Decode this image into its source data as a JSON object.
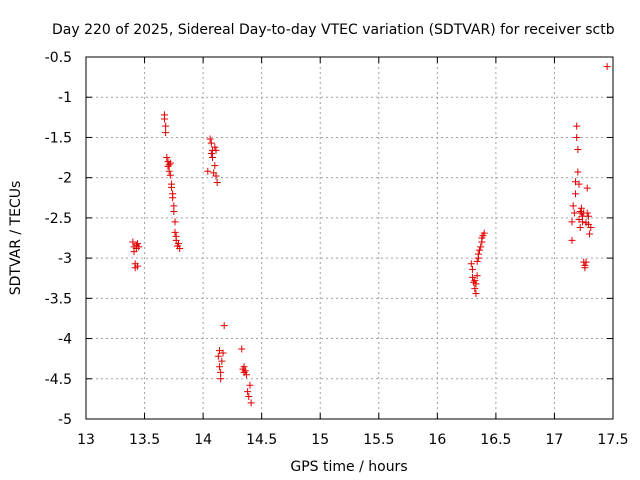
{
  "chart_data": {
    "type": "scatter",
    "title": "Day 220 of 2025, Sidereal Day-to-day VTEC variation (SDTVAR) for receiver sctb",
    "xlabel": "GPS time / hours",
    "ylabel": "SDTVAR / TECUs",
    "xlim": [
      13,
      17.5
    ],
    "ylim": [
      -5,
      -0.5
    ],
    "xticks": [
      13,
      13.5,
      14,
      14.5,
      15,
      15.5,
      16,
      16.5,
      17,
      17.5
    ],
    "xtick_labels": [
      "13",
      "13.5",
      "14",
      "14.5",
      "15",
      "15.5",
      "16",
      "16.5",
      "17",
      "17.5"
    ],
    "yticks": [
      -0.5,
      -1,
      -1.5,
      -2,
      -2.5,
      -3,
      -3.5,
      -4,
      -4.5,
      -5
    ],
    "ytick_labels": [
      "-0.5",
      "-1",
      "-1.5",
      "-2",
      "-2.5",
      "-3",
      "-3.5",
      "-4",
      "-4.5",
      "-5"
    ],
    "grid": true,
    "marker": "plus",
    "color": "#e00000",
    "series": [
      {
        "name": "SDTVAR",
        "points": [
          [
            13.4,
            -2.8
          ],
          [
            13.41,
            -2.86
          ],
          [
            13.41,
            -2.92
          ],
          [
            13.42,
            -3.07
          ],
          [
            13.42,
            -3.12
          ],
          [
            13.43,
            -2.84
          ],
          [
            13.43,
            -2.88
          ],
          [
            13.44,
            -3.1
          ],
          [
            13.44,
            -2.82
          ],
          [
            13.45,
            -2.86
          ],
          [
            13.67,
            -1.22
          ],
          [
            13.67,
            -1.27
          ],
          [
            13.68,
            -1.36
          ],
          [
            13.68,
            -1.44
          ],
          [
            13.69,
            -1.75
          ],
          [
            13.7,
            -1.8
          ],
          [
            13.7,
            -1.86
          ],
          [
            13.71,
            -1.84
          ],
          [
            13.71,
            -1.92
          ],
          [
            13.72,
            -1.82
          ],
          [
            13.72,
            -1.97
          ],
          [
            13.73,
            -2.12
          ],
          [
            13.73,
            -2.08
          ],
          [
            13.74,
            -2.2
          ],
          [
            13.74,
            -2.25
          ],
          [
            13.75,
            -2.35
          ],
          [
            13.75,
            -2.42
          ],
          [
            13.76,
            -2.55
          ],
          [
            13.76,
            -2.68
          ],
          [
            13.77,
            -2.78
          ],
          [
            13.77,
            -2.73
          ],
          [
            13.78,
            -2.85
          ],
          [
            13.79,
            -2.82
          ],
          [
            13.8,
            -2.88
          ],
          [
            14.04,
            -1.92
          ],
          [
            14.06,
            -1.52
          ],
          [
            14.07,
            -1.57
          ],
          [
            14.07,
            -1.7
          ],
          [
            14.08,
            -1.66
          ],
          [
            14.08,
            -1.75
          ],
          [
            14.09,
            -1.94
          ],
          [
            14.1,
            -1.62
          ],
          [
            14.1,
            -1.85
          ],
          [
            14.11,
            -1.66
          ],
          [
            14.11,
            -1.98
          ],
          [
            14.12,
            -2.06
          ],
          [
            14.13,
            -4.22
          ],
          [
            14.14,
            -4.15
          ],
          [
            14.14,
            -4.35
          ],
          [
            14.15,
            -4.42
          ],
          [
            14.15,
            -4.5
          ],
          [
            14.16,
            -4.28
          ],
          [
            14.17,
            -4.18
          ],
          [
            14.18,
            -3.84
          ],
          [
            14.33,
            -4.13
          ],
          [
            14.34,
            -4.38
          ],
          [
            14.35,
            -4.42
          ],
          [
            14.35,
            -4.35
          ],
          [
            14.36,
            -4.4
          ],
          [
            14.37,
            -4.45
          ],
          [
            14.38,
            -4.66
          ],
          [
            14.39,
            -4.72
          ],
          [
            14.4,
            -4.58
          ],
          [
            14.41,
            -4.8
          ],
          [
            16.29,
            -3.07
          ],
          [
            16.3,
            -3.14
          ],
          [
            16.3,
            -3.24
          ],
          [
            16.31,
            -3.3
          ],
          [
            16.32,
            -3.28
          ],
          [
            16.32,
            -3.38
          ],
          [
            16.33,
            -3.44
          ],
          [
            16.33,
            -3.32
          ],
          [
            16.34,
            -3.22
          ],
          [
            16.34,
            -3.04
          ],
          [
            16.35,
            -3.0
          ],
          [
            16.35,
            -2.95
          ],
          [
            16.36,
            -2.9
          ],
          [
            16.37,
            -2.86
          ],
          [
            16.38,
            -2.8
          ],
          [
            16.38,
            -2.75
          ],
          [
            16.39,
            -2.72
          ],
          [
            16.4,
            -2.69
          ],
          [
            17.15,
            -2.78
          ],
          [
            17.15,
            -2.55
          ],
          [
            17.16,
            -2.35
          ],
          [
            17.17,
            -2.44
          ],
          [
            17.18,
            -2.2
          ],
          [
            17.18,
            -2.05
          ],
          [
            17.19,
            -1.5
          ],
          [
            17.19,
            -1.36
          ],
          [
            17.2,
            -1.65
          ],
          [
            17.2,
            -1.93
          ],
          [
            17.21,
            -2.08
          ],
          [
            17.21,
            -2.52
          ],
          [
            17.22,
            -2.42
          ],
          [
            17.22,
            -2.62
          ],
          [
            17.23,
            -2.44
          ],
          [
            17.23,
            -2.38
          ],
          [
            17.24,
            -2.48
          ],
          [
            17.24,
            -2.55
          ],
          [
            17.25,
            -2.44
          ],
          [
            17.25,
            -3.05
          ],
          [
            17.26,
            -3.09
          ],
          [
            17.26,
            -3.12
          ],
          [
            17.27,
            -3.05
          ],
          [
            17.27,
            -2.56
          ],
          [
            17.28,
            -2.44
          ],
          [
            17.28,
            -2.13
          ],
          [
            17.29,
            -2.58
          ],
          [
            17.29,
            -2.48
          ],
          [
            17.3,
            -2.7
          ],
          [
            17.31,
            -2.62
          ],
          [
            17.45,
            -0.62
          ]
        ]
      }
    ]
  }
}
